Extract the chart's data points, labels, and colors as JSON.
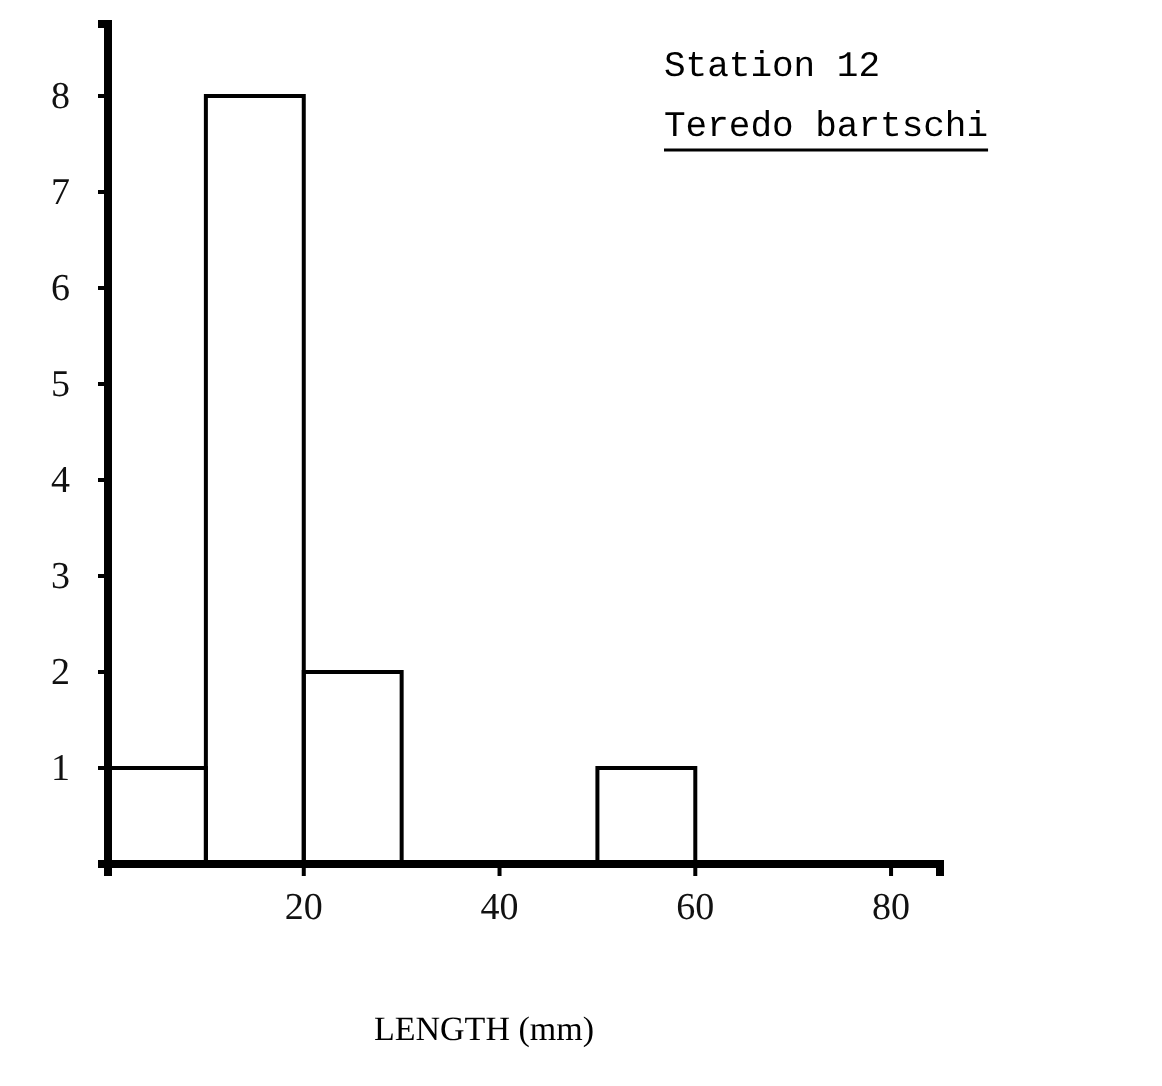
{
  "chart_data": {
    "type": "histogram",
    "title": "Station 12",
    "subtitle": "Teredo bartschi",
    "xlabel": "LENGTH (mm)",
    "bins": [
      0,
      10,
      20,
      30,
      40,
      50,
      60
    ],
    "values": [
      1,
      8,
      2,
      0,
      0,
      1
    ],
    "color": "#000000",
    "xlim": [
      0,
      85
    ],
    "xticks": [
      20,
      40,
      60,
      80
    ],
    "ylim": [
      0,
      8.75
    ],
    "yticks": [
      1,
      2,
      3,
      4,
      5,
      6,
      7,
      8
    ]
  }
}
